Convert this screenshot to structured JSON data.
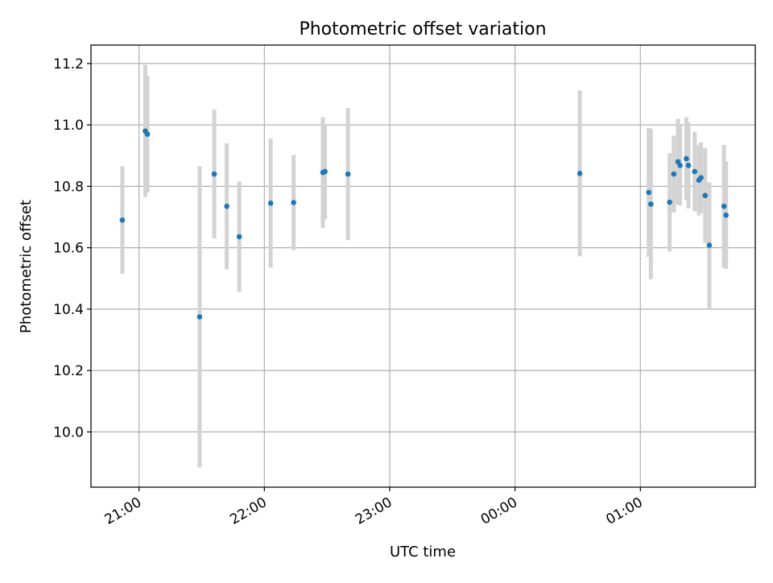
{
  "chart_data": {
    "type": "scatter",
    "title": "Photometric offset variation",
    "xlabel": "UTC time",
    "ylabel": "Photometric offset",
    "x_ticks": [
      "21:00",
      "22:00",
      "23:00",
      "00:00",
      "01:00"
    ],
    "y_ticks": [
      "10.0",
      "10.2",
      "10.4",
      "10.6",
      "10.8",
      "11.0",
      "11.2"
    ],
    "xlim": [
      "20:37",
      "01:55"
    ],
    "ylim": [
      9.82,
      11.26
    ],
    "grid": true,
    "error_bar_style": "vertical light-gray bars",
    "colors": {
      "point": "#1f77b4",
      "errorbar": "#d3d3d3",
      "grid": "#b0b0b0"
    },
    "points": [
      {
        "x": "20:52",
        "y": 10.69,
        "err": 0.175
      },
      {
        "x": "21:03",
        "y": 10.98,
        "err": 0.215
      },
      {
        "x": "21:04",
        "y": 10.97,
        "err": 0.19
      },
      {
        "x": "21:29",
        "y": 10.375,
        "err": 0.49
      },
      {
        "x": "21:36",
        "y": 10.84,
        "err": 0.21
      },
      {
        "x": "21:42",
        "y": 10.735,
        "err": 0.205
      },
      {
        "x": "21:48",
        "y": 10.636,
        "err": 0.18
      },
      {
        "x": "22:03",
        "y": 10.745,
        "err": 0.21
      },
      {
        "x": "22:14",
        "y": 10.747,
        "err": 0.155
      },
      {
        "x": "22:28",
        "y": 10.845,
        "err": 0.18
      },
      {
        "x": "22:29",
        "y": 10.848,
        "err": 0.155
      },
      {
        "x": "22:40",
        "y": 10.84,
        "err": 0.215
      },
      {
        "x": "00:31",
        "y": 10.842,
        "err": 0.27
      },
      {
        "x": "01:04",
        "y": 10.78,
        "err": 0.21
      },
      {
        "x": "01:05",
        "y": 10.742,
        "err": 0.245
      },
      {
        "x": "01:14",
        "y": 10.748,
        "err": 0.16
      },
      {
        "x": "01:16",
        "y": 10.84,
        "err": 0.125
      },
      {
        "x": "01:18",
        "y": 10.88,
        "err": 0.14
      },
      {
        "x": "01:19",
        "y": 10.868,
        "err": 0.13
      },
      {
        "x": "01:22",
        "y": 10.89,
        "err": 0.135
      },
      {
        "x": "01:23",
        "y": 10.868,
        "err": 0.14
      },
      {
        "x": "01:26",
        "y": 10.848,
        "err": 0.13
      },
      {
        "x": "01:28",
        "y": 10.82,
        "err": 0.115
      },
      {
        "x": "01:29",
        "y": 10.828,
        "err": 0.115
      },
      {
        "x": "01:31",
        "y": 10.77,
        "err": 0.155
      },
      {
        "x": "01:33",
        "y": 10.608,
        "err": 0.205
      },
      {
        "x": "01:40",
        "y": 10.735,
        "err": 0.2
      },
      {
        "x": "01:41",
        "y": 10.706,
        "err": 0.175
      }
    ]
  }
}
